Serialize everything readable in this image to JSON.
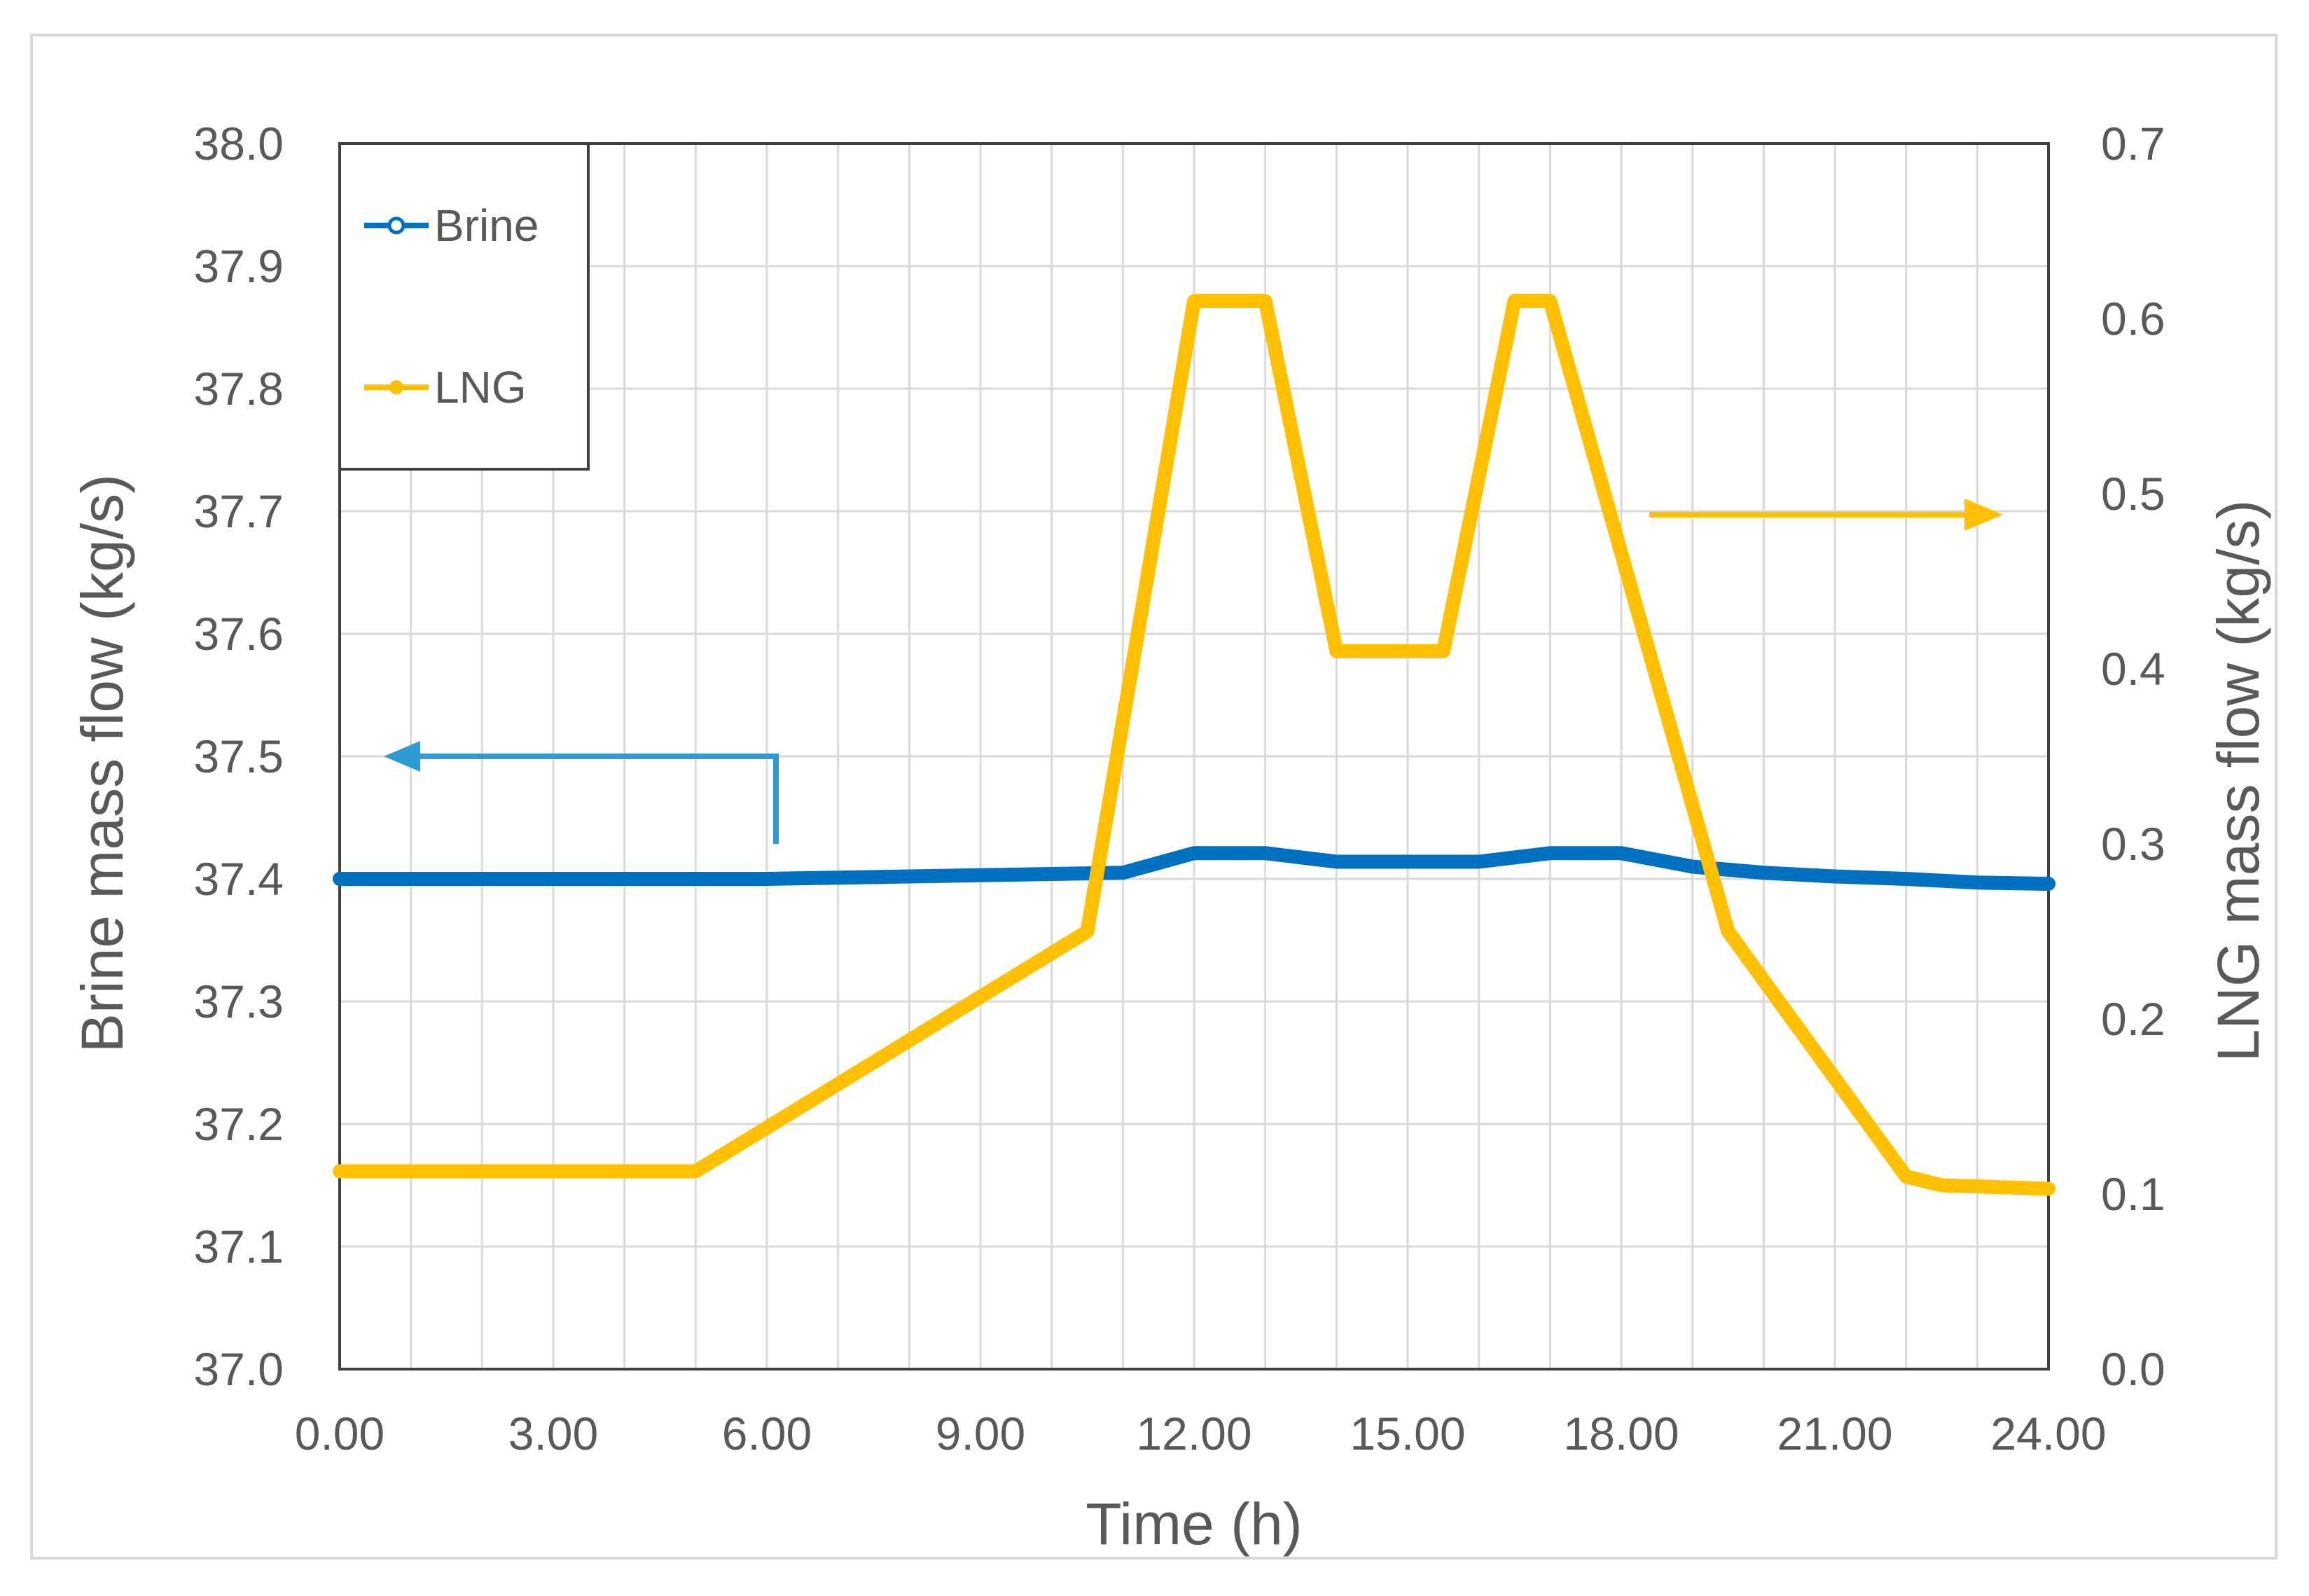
{
  "chart_data": {
    "type": "line",
    "xlabel": "Time (h)",
    "ylabel_left": "Brine mass flow (kg/s)",
    "ylabel_right": "LNG mass flow (kg/s)",
    "xlim": [
      0,
      24
    ],
    "ylim_left": [
      37.0,
      38.0
    ],
    "ylim_right": [
      0.0,
      0.7
    ],
    "x_ticks": [
      "0.00",
      "3.00",
      "6.00",
      "9.00",
      "12.00",
      "15.00",
      "18.00",
      "21.00",
      "24.00"
    ],
    "y_left_ticks": [
      "37.0",
      "37.1",
      "37.2",
      "37.3",
      "37.4",
      "37.5",
      "37.6",
      "37.7",
      "37.8",
      "37.9",
      "38.0"
    ],
    "y_right_ticks": [
      "0.0",
      "0.1",
      "0.2",
      "0.3",
      "0.4",
      "0.5",
      "0.6",
      "0.7"
    ],
    "grid": true,
    "legend_position": "top-left",
    "series": [
      {
        "name": "Brine",
        "axis": "left",
        "color": "#0070C0",
        "x": [
          0,
          1,
          2,
          3,
          4,
          5,
          6,
          7,
          8,
          9,
          10,
          11,
          12,
          13,
          14,
          15,
          16,
          17,
          18,
          19,
          20,
          21,
          22,
          23,
          24
        ],
        "y": [
          37.4,
          37.4,
          37.4,
          37.4,
          37.4,
          37.4,
          37.4,
          37.401,
          37.402,
          37.403,
          37.404,
          37.405,
          37.421,
          37.421,
          37.414,
          37.414,
          37.414,
          37.421,
          37.421,
          37.41,
          37.405,
          37.402,
          37.4,
          37.397,
          37.396
        ]
      },
      {
        "name": "LNG",
        "axis": "right",
        "color": "#FFC000",
        "x": [
          0,
          5,
          10.5,
          12,
          13,
          14,
          15.5,
          16.5,
          17,
          19.5,
          22,
          22.5,
          24
        ],
        "y": [
          0.113,
          0.113,
          0.25,
          0.61,
          0.61,
          0.41,
          0.41,
          0.61,
          0.61,
          0.25,
          0.11,
          0.105,
          0.103
        ]
      }
    ]
  }
}
